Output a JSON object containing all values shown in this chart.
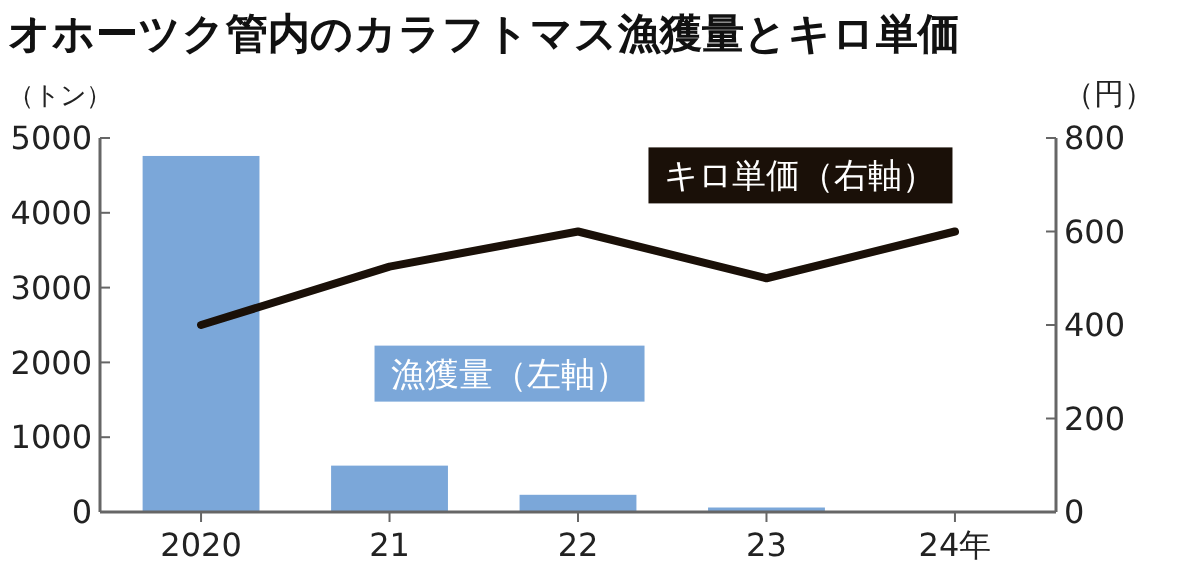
{
  "chart_data": {
    "type": "bar",
    "title": "オホーツク管内のカラフトマス漁獲量とキロ単価",
    "ylabel": "（トン）",
    "y2label": "（円）",
    "categories": [
      "2020",
      "21",
      "22",
      "23",
      "24年"
    ],
    "series": [
      {
        "name": "漁獲量（左軸）",
        "color": "#7ba7d9",
        "values": [
          4760,
          620,
          230,
          60,
          10
        ]
      },
      {
        "name": "キロ単価（右軸）",
        "type": "line",
        "axis": "y2",
        "color": "#1a1008",
        "values": [
          400,
          525,
          600,
          500,
          600
        ]
      }
    ],
    "ylim": [
      0,
      5000
    ],
    "yticks": [
      0,
      1000,
      2000,
      3000,
      4000,
      5000
    ],
    "y2lim": [
      0,
      800
    ],
    "y2ticks": [
      0,
      200,
      400,
      600,
      800
    ],
    "grid": false,
    "marker": "none",
    "line_style": "solid"
  }
}
